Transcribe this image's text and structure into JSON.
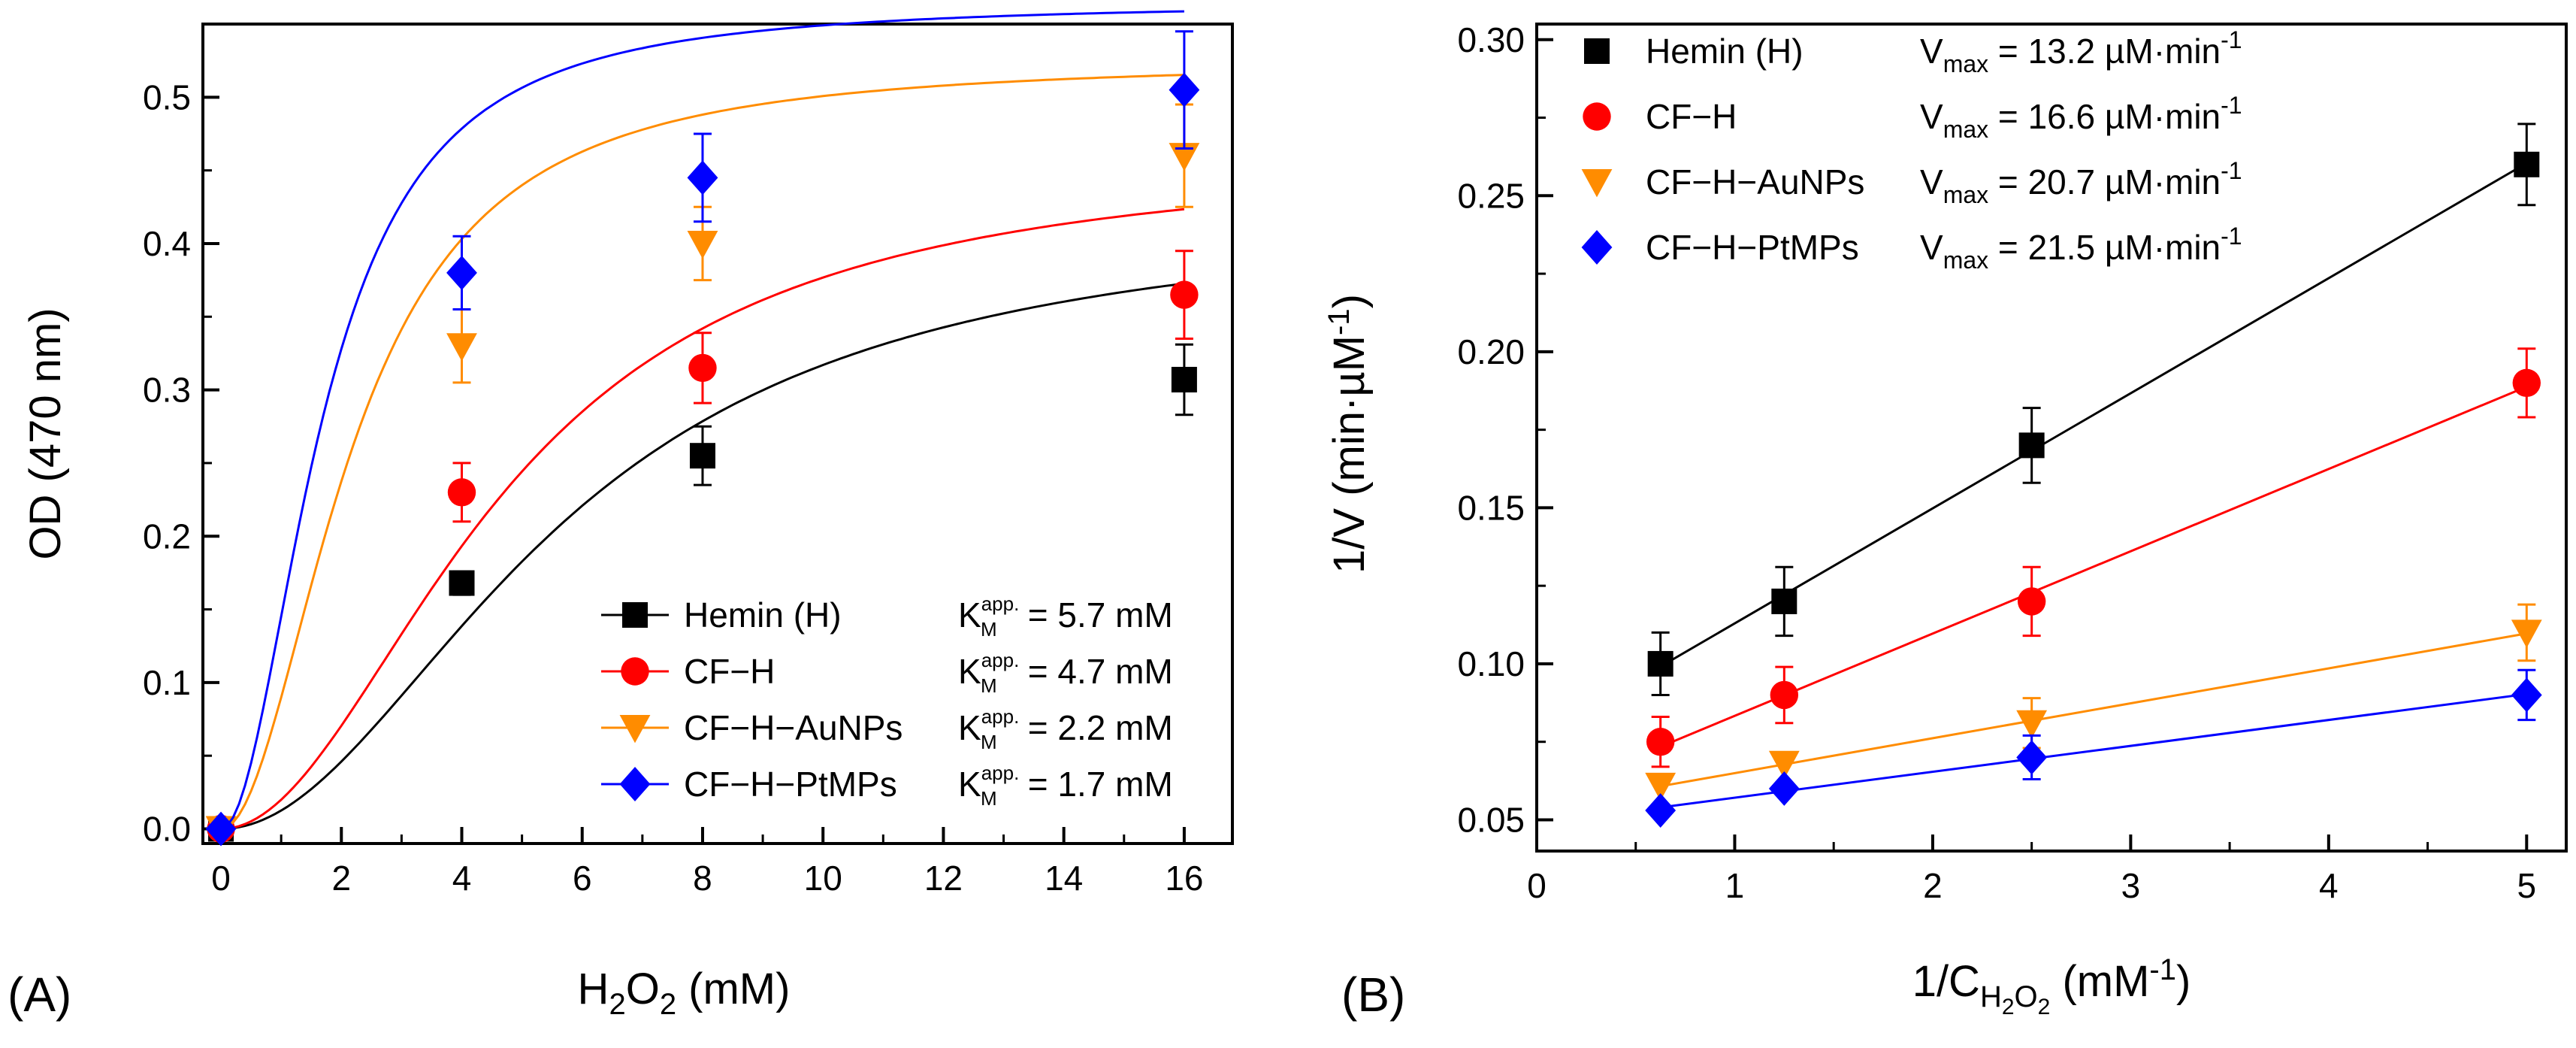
{
  "panels": [
    {
      "label": "(A)",
      "xlabel": {
        "main": "H",
        "sub": "2",
        "main2": "O",
        "sub2": "2",
        "rest": " (mM)"
      },
      "ylabel": "OD (470 nm)"
    },
    {
      "label": "(B)",
      "xlabel": {
        "main": "1/C",
        "sub": "H",
        "sub_sub": "2",
        "sub_mid": "O",
        "sub_sub2": "2",
        "rest": " (mM",
        "sup": "-1",
        "close": ")"
      },
      "ylabel": {
        "main": "1/V (min·µM",
        "sup": "-1",
        "close": ")"
      }
    }
  ],
  "chart_data": [
    {
      "type": "line",
      "panel": "A",
      "xlabel": "H2O2 (mM)",
      "ylabel": "OD (470 nm)",
      "xlim": [
        -0.3,
        16.8
      ],
      "ylim": [
        -0.01,
        0.55
      ],
      "xticks": [
        "0",
        "2",
        "4",
        "6",
        "8",
        "10",
        "12",
        "14",
        "16"
      ],
      "yticks": [
        "0.0",
        "0.1",
        "0.2",
        "0.3",
        "0.4",
        "0.5"
      ],
      "x": [
        0,
        4,
        8,
        16
      ],
      "series": [
        {
          "name": "Hemin (H)",
          "color": "#000000",
          "marker": "square",
          "values": [
            0,
            0.168,
            0.255,
            0.307
          ],
          "errors": [
            0.005,
            0.008,
            0.02,
            0.024
          ],
          "fit": {
            "vmax": 0.42,
            "km": 5.7
          },
          "annotation": {
            "k": "K",
            "sub": "M",
            "sup": "app.",
            "value": " = 5.7 mM"
          }
        },
        {
          "name": "CF−H",
          "color": "#ff0000",
          "marker": "circle",
          "values": [
            0,
            0.23,
            0.315,
            0.365
          ],
          "errors": [
            0.005,
            0.02,
            0.024,
            0.03
          ],
          "fit": {
            "vmax": 0.46,
            "km": 4.7
          },
          "annotation": {
            "k": "K",
            "sub": "M",
            "sup": "app.",
            "value": " = 4.7 mM"
          }
        },
        {
          "name": "CF−H−AuNPs",
          "color": "#ff8c00",
          "marker": "triangle-down",
          "values": [
            0,
            0.33,
            0.4,
            0.46
          ],
          "errors": [
            0.005,
            0.025,
            0.025,
            0.035
          ],
          "fit": {
            "vmax": 0.525,
            "km": 2.2
          },
          "annotation": {
            "k": "K",
            "sub": "M",
            "sup": "app.",
            "value": " = 2.2 mM"
          }
        },
        {
          "name": "CF−H−PtMPs",
          "color": "#0000ff",
          "marker": "diamond",
          "values": [
            0,
            0.38,
            0.445,
            0.505
          ],
          "errors": [
            0.005,
            0.025,
            0.03,
            0.04
          ],
          "fit": {
            "vmax": 0.565,
            "km": 1.7
          },
          "annotation": {
            "k": "K",
            "sub": "M",
            "sup": "app.",
            "value": " = 1.7 mM"
          }
        }
      ]
    },
    {
      "type": "line",
      "panel": "B",
      "xlabel": "1/C H2O2 (mM-1)",
      "ylabel": "1/V (min·µM-1)",
      "xlim": [
        0,
        5.2
      ],
      "ylim": [
        0.04,
        0.305
      ],
      "xticks": [
        "0",
        "1",
        "2",
        "3",
        "4",
        "5"
      ],
      "yticks": [
        "0.05",
        "0.10",
        "0.15",
        "0.20",
        "0.25",
        "0.30"
      ],
      "x": [
        0.625,
        1.25,
        2.5,
        5
      ],
      "series": [
        {
          "name": "Hemin (H)",
          "color": "#000000",
          "marker": "square",
          "values": [
            0.1,
            0.12,
            0.17,
            0.26
          ],
          "errors": [
            0.01,
            0.011,
            0.012,
            0.013
          ],
          "annotation": {
            "v": "V",
            "sub": "max",
            "value": " = 13.2 µM·min",
            "sup": "-1"
          }
        },
        {
          "name": "CF−H",
          "color": "#ff0000",
          "marker": "circle",
          "values": [
            0.075,
            0.09,
            0.12,
            0.19
          ],
          "errors": [
            0.008,
            0.009,
            0.011,
            0.011
          ],
          "annotation": {
            "v": "V",
            "sub": "max",
            "value": " = 16.6 µM·min",
            "sup": "-1"
          }
        },
        {
          "name": "CF−H−AuNPs",
          "color": "#ff8c00",
          "marker": "triangle-down",
          "values": [
            0.061,
            0.068,
            0.081,
            0.11
          ],
          "errors": [
            0.004,
            0.006,
            0.008,
            0.009
          ],
          "annotation": {
            "v": "V",
            "sub": "max",
            "value": " = 20.7 µM·min",
            "sup": "-1"
          }
        },
        {
          "name": "CF−H−PtMPs",
          "color": "#0000ff",
          "marker": "diamond",
          "values": [
            0.053,
            0.06,
            0.07,
            0.09
          ],
          "errors": [
            0.005,
            0.006,
            0.007,
            0.008
          ],
          "annotation": {
            "v": "V",
            "sub": "max",
            "value": " = 21.5 µM·min",
            "sup": "-1"
          }
        }
      ]
    }
  ]
}
